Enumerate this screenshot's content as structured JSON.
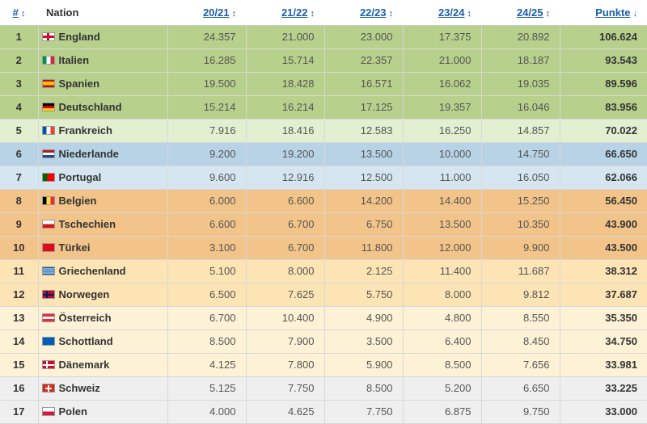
{
  "header": {
    "rank": "#",
    "nation": "Nation",
    "seasons": [
      "20/21",
      "21/22",
      "22/23",
      "23/24",
      "24/25"
    ],
    "points": "Punkte",
    "sort_arrow": "↕",
    "sort_arrow_active": "↓"
  },
  "rows": [
    {
      "rank": "1",
      "nation": "England",
      "flag": "flag-england-icon",
      "values": [
        "24.357",
        "21.000",
        "23.000",
        "17.375",
        "20.892"
      ],
      "points": "106.624",
      "group": "g1"
    },
    {
      "rank": "2",
      "nation": "Italien",
      "flag": "flag-italy-icon",
      "values": [
        "16.285",
        "15.714",
        "22.357",
        "21.000",
        "18.187"
      ],
      "points": "93.543",
      "group": "g1"
    },
    {
      "rank": "3",
      "nation": "Spanien",
      "flag": "flag-spain-icon",
      "values": [
        "19.500",
        "18.428",
        "16.571",
        "16.062",
        "19.035"
      ],
      "points": "89.596",
      "group": "g1"
    },
    {
      "rank": "4",
      "nation": "Deutschland",
      "flag": "flag-germany-icon",
      "values": [
        "15.214",
        "16.214",
        "17.125",
        "19.357",
        "16.046"
      ],
      "points": "83.956",
      "group": "g1"
    },
    {
      "rank": "5",
      "nation": "Frankreich",
      "flag": "flag-france-icon",
      "values": [
        "7.916",
        "18.416",
        "12.583",
        "16.250",
        "14.857"
      ],
      "points": "70.022",
      "group": "g2"
    },
    {
      "rank": "6",
      "nation": "Niederlande",
      "flag": "flag-netherlands-icon",
      "values": [
        "9.200",
        "19.200",
        "13.500",
        "10.000",
        "14.750"
      ],
      "points": "66.650",
      "group": "g3"
    },
    {
      "rank": "7",
      "nation": "Portugal",
      "flag": "flag-portugal-icon",
      "values": [
        "9.600",
        "12.916",
        "12.500",
        "11.000",
        "16.050"
      ],
      "points": "62.066",
      "group": "g4"
    },
    {
      "rank": "8",
      "nation": "Belgien",
      "flag": "flag-belgium-icon",
      "values": [
        "6.000",
        "6.600",
        "14.200",
        "14.400",
        "15.250"
      ],
      "points": "56.450",
      "group": "g5"
    },
    {
      "rank": "9",
      "nation": "Tschechien",
      "flag": "flag-czechia-icon",
      "values": [
        "6.600",
        "6.700",
        "6.750",
        "13.500",
        "10.350"
      ],
      "points": "43.900",
      "group": "g5"
    },
    {
      "rank": "10",
      "nation": "Türkei",
      "flag": "flag-turkey-icon",
      "values": [
        "3.100",
        "6.700",
        "11.800",
        "12.000",
        "9.900"
      ],
      "points": "43.500",
      "group": "g5"
    },
    {
      "rank": "11",
      "nation": "Griechenland",
      "flag": "flag-greece-icon",
      "values": [
        "5.100",
        "8.000",
        "2.125",
        "11.400",
        "11.687"
      ],
      "points": "38.312",
      "group": "g6"
    },
    {
      "rank": "12",
      "nation": "Norwegen",
      "flag": "flag-norway-icon",
      "values": [
        "6.500",
        "7.625",
        "5.750",
        "8.000",
        "9.812"
      ],
      "points": "37.687",
      "group": "g6"
    },
    {
      "rank": "13",
      "nation": "Österreich",
      "flag": "flag-austria-icon",
      "values": [
        "6.700",
        "10.400",
        "4.900",
        "4.800",
        "8.550"
      ],
      "points": "35.350",
      "group": "g7"
    },
    {
      "rank": "14",
      "nation": "Schottland",
      "flag": "flag-scotland-icon",
      "values": [
        "8.500",
        "7.900",
        "3.500",
        "6.400",
        "8.450"
      ],
      "points": "34.750",
      "group": "g7"
    },
    {
      "rank": "15",
      "nation": "Dänemark",
      "flag": "flag-denmark-icon",
      "values": [
        "4.125",
        "7.800",
        "5.900",
        "8.500",
        "7.656"
      ],
      "points": "33.981",
      "group": "g7"
    },
    {
      "rank": "16",
      "nation": "Schweiz",
      "flag": "flag-switzerland-icon",
      "values": [
        "5.125",
        "7.750",
        "8.500",
        "5.200",
        "6.650"
      ],
      "points": "33.225",
      "group": "g8"
    },
    {
      "rank": "17",
      "nation": "Polen",
      "flag": "flag-poland-icon",
      "values": [
        "4.000",
        "4.625",
        "7.750",
        "6.875",
        "9.750"
      ],
      "points": "33.000",
      "group": "g8"
    }
  ],
  "group_colors": {
    "g1": "#b7d08c",
    "g2": "#e2efd0",
    "g3": "#b8d3e6",
    "g4": "#d6e6f1",
    "g5": "#f2c489",
    "g6": "#fce4b5",
    "g7": "#fdf2d6",
    "g8": "#efefef"
  }
}
